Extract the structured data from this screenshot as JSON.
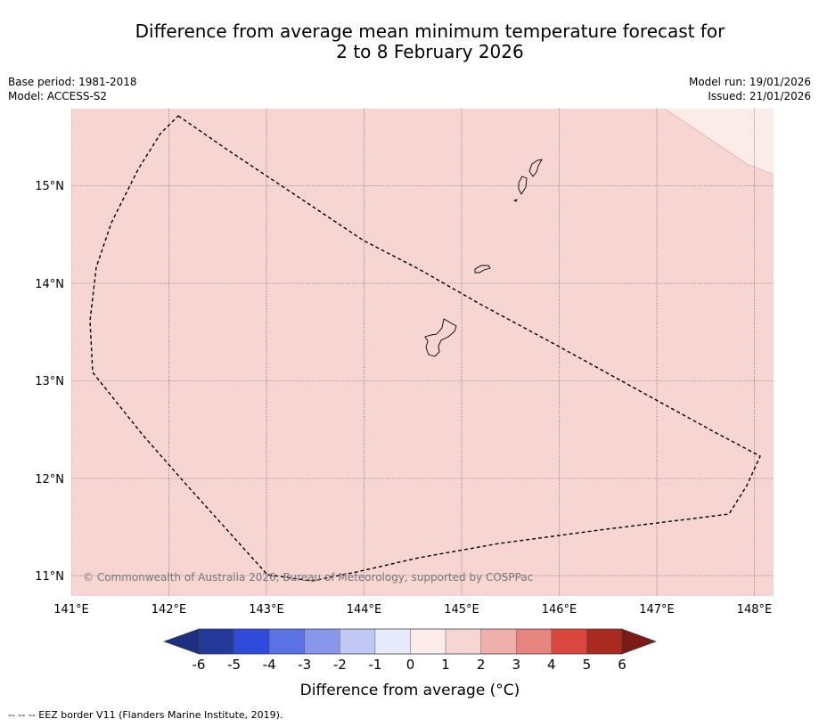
{
  "title": {
    "line1": "Difference from average mean minimum temperature forecast for",
    "line2": "2 to 8 February 2026"
  },
  "meta": {
    "base_period": "Base period: 1981-2018",
    "model": "Model: ACCESS-S2",
    "model_run": "Model run: 19/01/2026",
    "issued": "Issued: 21/01/2026"
  },
  "map": {
    "lon_range": [
      141.0,
      148.2
    ],
    "lat_range": [
      10.8,
      15.8
    ],
    "lon_labels": [
      "141°E",
      "142°E",
      "143°E",
      "144°E",
      "145°E",
      "146°E",
      "147°E",
      "148°E"
    ],
    "lat_labels": [
      "11°N",
      "12°N",
      "13°N",
      "14°N",
      "15°N"
    ],
    "copyright": "© Commonwealth of Australia 2026, Bureau of Meteorology, supported by COSPPac",
    "base_anomaly_color": "#f6d5d3",
    "ne_anomaly_color": "#fbebe9"
  },
  "colorbar": {
    "ticks": [
      "-6",
      "-5",
      "-4",
      "-3",
      "-2",
      "-1",
      "0",
      "1",
      "2",
      "3",
      "4",
      "5",
      "6"
    ],
    "colors": [
      "#233a9a",
      "#2f4bdb",
      "#5a72e4",
      "#8697ec",
      "#c0c8f3",
      "#e6eafa",
      "#fbebe9",
      "#f6d5d3",
      "#efafab",
      "#e6847e",
      "#d9473f",
      "#ab2a20"
    ],
    "under_color": "#1e2f80",
    "over_color": "#7a1b17",
    "label": "Difference from average (°C)"
  },
  "legend": {
    "eez": "--  --  -- EEZ border V11 (Flanders Marine Institute, 2019)."
  }
}
